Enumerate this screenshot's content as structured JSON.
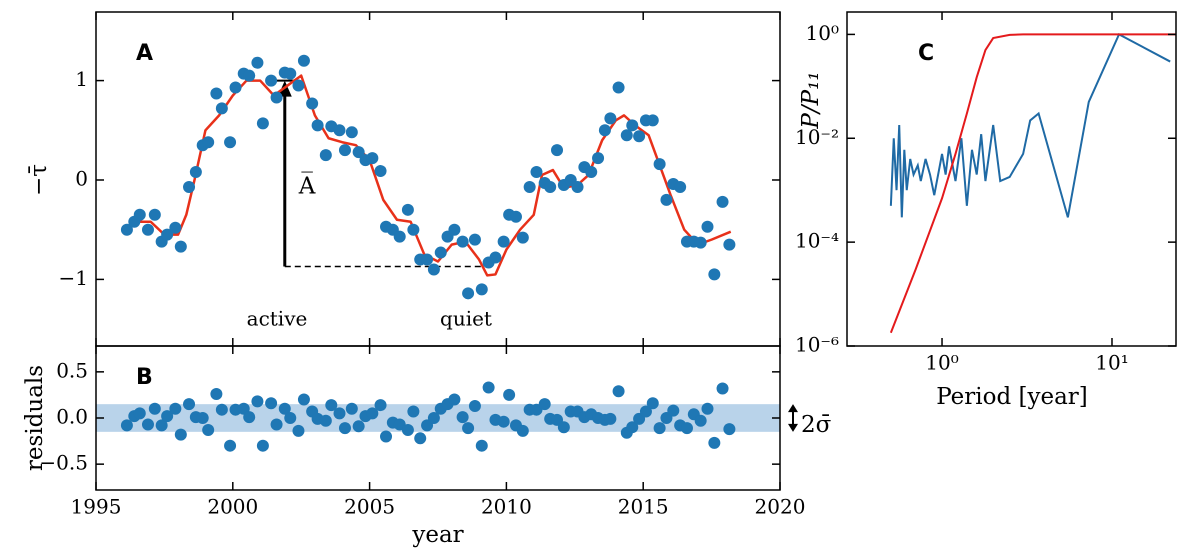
{
  "chart_data": [
    {
      "type": "scatter",
      "panel": "A",
      "ylabel": "−τ̄",
      "xlim": [
        1995,
        2020
      ],
      "xticks": [
        1995,
        2000,
        2005,
        2010,
        2015,
        2020
      ],
      "ylim": [
        -1.67,
        1.69
      ],
      "yticks": [
        {
          "value": -1,
          "label": "−1"
        },
        0,
        1
      ],
      "color": "#1f77b4",
      "x": [
        1996.13,
        1996.4,
        1996.6,
        1996.9,
        1997.15,
        1997.4,
        1997.6,
        1997.9,
        1998.1,
        1998.4,
        1998.65,
        1998.9,
        1999.1,
        1999.4,
        1999.6,
        1999.9,
        2000.1,
        2000.4,
        2000.6,
        2000.9,
        2001.1,
        2001.4,
        2001.6,
        2001.9,
        2002.1,
        2002.4,
        2002.6,
        2002.9,
        2003.1,
        2003.4,
        2003.6,
        2003.9,
        2004.1,
        2004.35,
        2004.6,
        2004.85,
        2005.1,
        2005.4,
        2005.6,
        2005.85,
        2006.1,
        2006.4,
        2006.6,
        2006.85,
        2007.1,
        2007.35,
        2007.6,
        2007.85,
        2008.1,
        2008.4,
        2008.6,
        2008.85,
        2009.1,
        2009.35,
        2009.6,
        2009.9,
        2010.1,
        2010.35,
        2010.6,
        2010.85,
        2011.1,
        2011.4,
        2011.6,
        2011.85,
        2012.1,
        2012.35,
        2012.6,
        2012.85,
        2013.1,
        2013.35,
        2013.6,
        2013.8,
        2014.1,
        2014.4,
        2014.6,
        2014.85,
        2015.1,
        2015.35,
        2015.6,
        2015.85,
        2016.1,
        2016.35,
        2016.6,
        2016.85,
        2017.1,
        2017.35,
        2017.6,
        2017.9,
        2018.15
      ],
      "values": [
        -0.5,
        -0.42,
        -0.35,
        -0.5,
        -0.35,
        -0.62,
        -0.55,
        -0.48,
        -0.67,
        -0.07,
        0.08,
        0.35,
        0.38,
        0.87,
        0.72,
        0.38,
        0.93,
        1.07,
        1.05,
        1.18,
        0.57,
        1.0,
        0.83,
        1.08,
        1.07,
        0.95,
        1.2,
        0.77,
        0.55,
        0.25,
        0.54,
        0.5,
        0.3,
        0.48,
        0.28,
        0.2,
        0.22,
        0.09,
        -0.47,
        -0.5,
        -0.57,
        -0.3,
        -0.5,
        -0.8,
        -0.8,
        -0.9,
        -0.73,
        -0.57,
        -0.5,
        -0.62,
        -1.14,
        -0.6,
        -1.1,
        -0.83,
        -0.78,
        -0.62,
        -0.35,
        -0.37,
        -0.58,
        -0.07,
        0.08,
        -0.03,
        -0.07,
        0.3,
        -0.05,
        0.0,
        -0.07,
        0.13,
        0.08,
        0.22,
        0.5,
        0.62,
        0.93,
        0.45,
        0.55,
        0.44,
        0.6,
        0.6,
        0.16,
        -0.2,
        -0.04,
        -0.07,
        -0.62,
        -0.62,
        -0.63,
        -0.47,
        -0.95,
        -0.22,
        -0.65
      ],
      "fit": {
        "color": "#e8311a",
        "x": [
          1996.1,
          1996.5,
          1997,
          1997.5,
          1998,
          1998.3,
          1998.6,
          1999,
          1999.5,
          2000,
          2000.5,
          2001,
          2001.5,
          2002,
          2002.5,
          2003,
          2003.5,
          2004,
          2004.5,
          2005,
          2005.5,
          2006,
          2006.5,
          2007,
          2007.5,
          2008,
          2008.5,
          2009,
          2009.3,
          2009.6,
          2010,
          2010.5,
          2011,
          2011.3,
          2011.7,
          2012.1,
          2012.6,
          2013,
          2013.5,
          2014,
          2014.3,
          2014.7,
          2015.2,
          2015.6,
          2016,
          2016.5,
          2017,
          2017.5,
          2018.2
        ],
        "values": [
          -0.48,
          -0.42,
          -0.42,
          -0.55,
          -0.55,
          -0.35,
          0.0,
          0.5,
          0.65,
          0.85,
          1.0,
          1.0,
          0.85,
          0.95,
          1.05,
          0.65,
          0.42,
          0.38,
          0.35,
          0.2,
          -0.2,
          -0.4,
          -0.42,
          -0.75,
          -0.82,
          -0.65,
          -0.62,
          -0.8,
          -0.96,
          -0.95,
          -0.7,
          -0.5,
          -0.35,
          0.05,
          0.1,
          -0.08,
          -0.05,
          0.05,
          0.4,
          0.6,
          0.65,
          0.55,
          0.45,
          0.15,
          -0.15,
          -0.5,
          -0.65,
          -0.6,
          -0.52
        ]
      },
      "amplitude": {
        "x": 2001.9,
        "from": -0.87,
        "to": 1.0,
        "baseline_end": 2009.3,
        "label": "A̅"
      },
      "annotations": [
        "active",
        "quiet"
      ]
    },
    {
      "type": "scatter",
      "panel": "B",
      "xlabel": "year",
      "ylabel": "residuals",
      "xlim": [
        1995,
        2020
      ],
      "xticks": [
        1995,
        2000,
        2005,
        2010,
        2015,
        2020
      ],
      "ylim": [
        -0.78,
        0.78
      ],
      "yticks": [
        {
          "value": -0.5,
          "label": "−0.5"
        },
        {
          "value": 0,
          "label": "0.0"
        },
        0.5
      ],
      "color": "#1f77b4",
      "band": [
        -0.15,
        0.15
      ],
      "band_color": "#b9d3ea",
      "band_label": "2σ̄",
      "x": [
        1996.13,
        1996.4,
        1996.6,
        1996.9,
        1997.15,
        1997.4,
        1997.6,
        1997.9,
        1998.1,
        1998.4,
        1998.65,
        1998.9,
        1999.1,
        1999.4,
        1999.6,
        1999.9,
        2000.1,
        2000.4,
        2000.6,
        2000.9,
        2001.1,
        2001.4,
        2001.6,
        2001.9,
        2002.1,
        2002.4,
        2002.6,
        2002.9,
        2003.1,
        2003.4,
        2003.6,
        2003.9,
        2004.1,
        2004.35,
        2004.6,
        2004.85,
        2005.1,
        2005.4,
        2005.6,
        2005.85,
        2006.1,
        2006.4,
        2006.6,
        2006.85,
        2007.1,
        2007.35,
        2007.6,
        2007.85,
        2008.1,
        2008.4,
        2008.6,
        2008.85,
        2009.1,
        2009.35,
        2009.6,
        2009.9,
        2010.1,
        2010.35,
        2010.6,
        2010.85,
        2011.1,
        2011.4,
        2011.6,
        2011.85,
        2012.1,
        2012.35,
        2012.6,
        2012.85,
        2013.1,
        2013.35,
        2013.6,
        2013.8,
        2014.1,
        2014.4,
        2014.6,
        2014.85,
        2015.1,
        2015.35,
        2015.6,
        2015.85,
        2016.1,
        2016.35,
        2016.6,
        2016.85,
        2017.1,
        2017.35,
        2017.6,
        2017.9,
        2018.15
      ],
      "values": [
        -0.08,
        0.02,
        0.05,
        -0.07,
        0.1,
        -0.08,
        0.02,
        0.1,
        -0.18,
        0.15,
        0.01,
        0,
        -0.13,
        0.26,
        0.09,
        -0.3,
        0.09,
        0.1,
        0.01,
        0.18,
        -0.3,
        0.16,
        -0.07,
        0.1,
        0,
        -0.14,
        0.2,
        0.07,
        -0.01,
        -0.03,
        0.14,
        0.05,
        -0.11,
        0.1,
        -0.09,
        0.02,
        0.05,
        0.14,
        -0.2,
        -0.05,
        -0.07,
        -0.13,
        0.07,
        -0.22,
        -0.08,
        0,
        0.1,
        0.15,
        0.2,
        0.01,
        -0.11,
        0.13,
        -0.3,
        0.33,
        -0.02,
        -0.04,
        0.25,
        -0.08,
        -0.14,
        0.09,
        0.09,
        0.15,
        -0.01,
        -0.02,
        -0.1,
        0.07,
        0.07,
        0.01,
        0.04,
        0,
        -0.02,
        -0.01,
        0.29,
        -0.16,
        -0.1,
        -0.01,
        0.07,
        0.16,
        -0.11,
        0,
        0.08,
        -0.08,
        -0.11,
        0.04,
        -0.03,
        0.1,
        -0.27,
        0.32,
        -0.12
      ]
    },
    {
      "type": "line",
      "panel": "C",
      "xlabel": "Period [year]",
      "ylabel": "P/P₁₁",
      "xscale": "log",
      "yscale": "log",
      "xlim": [
        0.276,
        23.8
      ],
      "xticks": [
        {
          "value": 1,
          "label": "10⁰"
        },
        {
          "value": 10,
          "label": "10¹"
        }
      ],
      "ylim": [
        1e-06,
        2.7
      ],
      "yticks": [
        {
          "value": 1e-06,
          "label": "10⁻⁶"
        },
        {
          "value": 0.0001,
          "label": "10⁻⁴"
        },
        {
          "value": 0.01,
          "label": "10⁻²"
        },
        {
          "value": 1,
          "label": "10⁰"
        }
      ],
      "series": [
        {
          "color": "#1f6aa5",
          "x": [
            0.5,
            0.52,
            0.54,
            0.56,
            0.58,
            0.6,
            0.62,
            0.65,
            0.68,
            0.72,
            0.75,
            0.8,
            0.85,
            0.9,
            1.0,
            1.05,
            1.1,
            1.2,
            1.3,
            1.4,
            1.5,
            1.6,
            1.7,
            1.8,
            2.0,
            2.2,
            2.5,
            3.0,
            3.3,
            3.7,
            5.5,
            7.3,
            11,
            22
          ],
          "values": [
            0.0005,
            0.01,
            0.001,
            0.018,
            0.0003,
            0.006,
            0.001,
            0.004,
            0.002,
            0.003,
            0.0015,
            0.004,
            0.002,
            0.0008,
            0.005,
            0.002,
            0.007,
            0.0015,
            0.01,
            0.0005,
            0.006,
            0.002,
            0.012,
            0.0015,
            0.018,
            0.0015,
            0.0018,
            0.005,
            0.022,
            0.03,
            0.0003,
            0.05,
            1.0,
            0.3
          ]
        },
        {
          "color": "#e41a1c",
          "x": [
            0.5,
            0.7,
            1.0,
            1.2,
            1.4,
            1.6,
            1.8,
            2.0,
            2.5,
            3,
            23.8
          ],
          "values": [
            1.8e-06,
            3e-05,
            0.0007,
            0.005,
            0.03,
            0.15,
            0.5,
            0.85,
            0.98,
            1,
            1
          ]
        }
      ]
    }
  ]
}
